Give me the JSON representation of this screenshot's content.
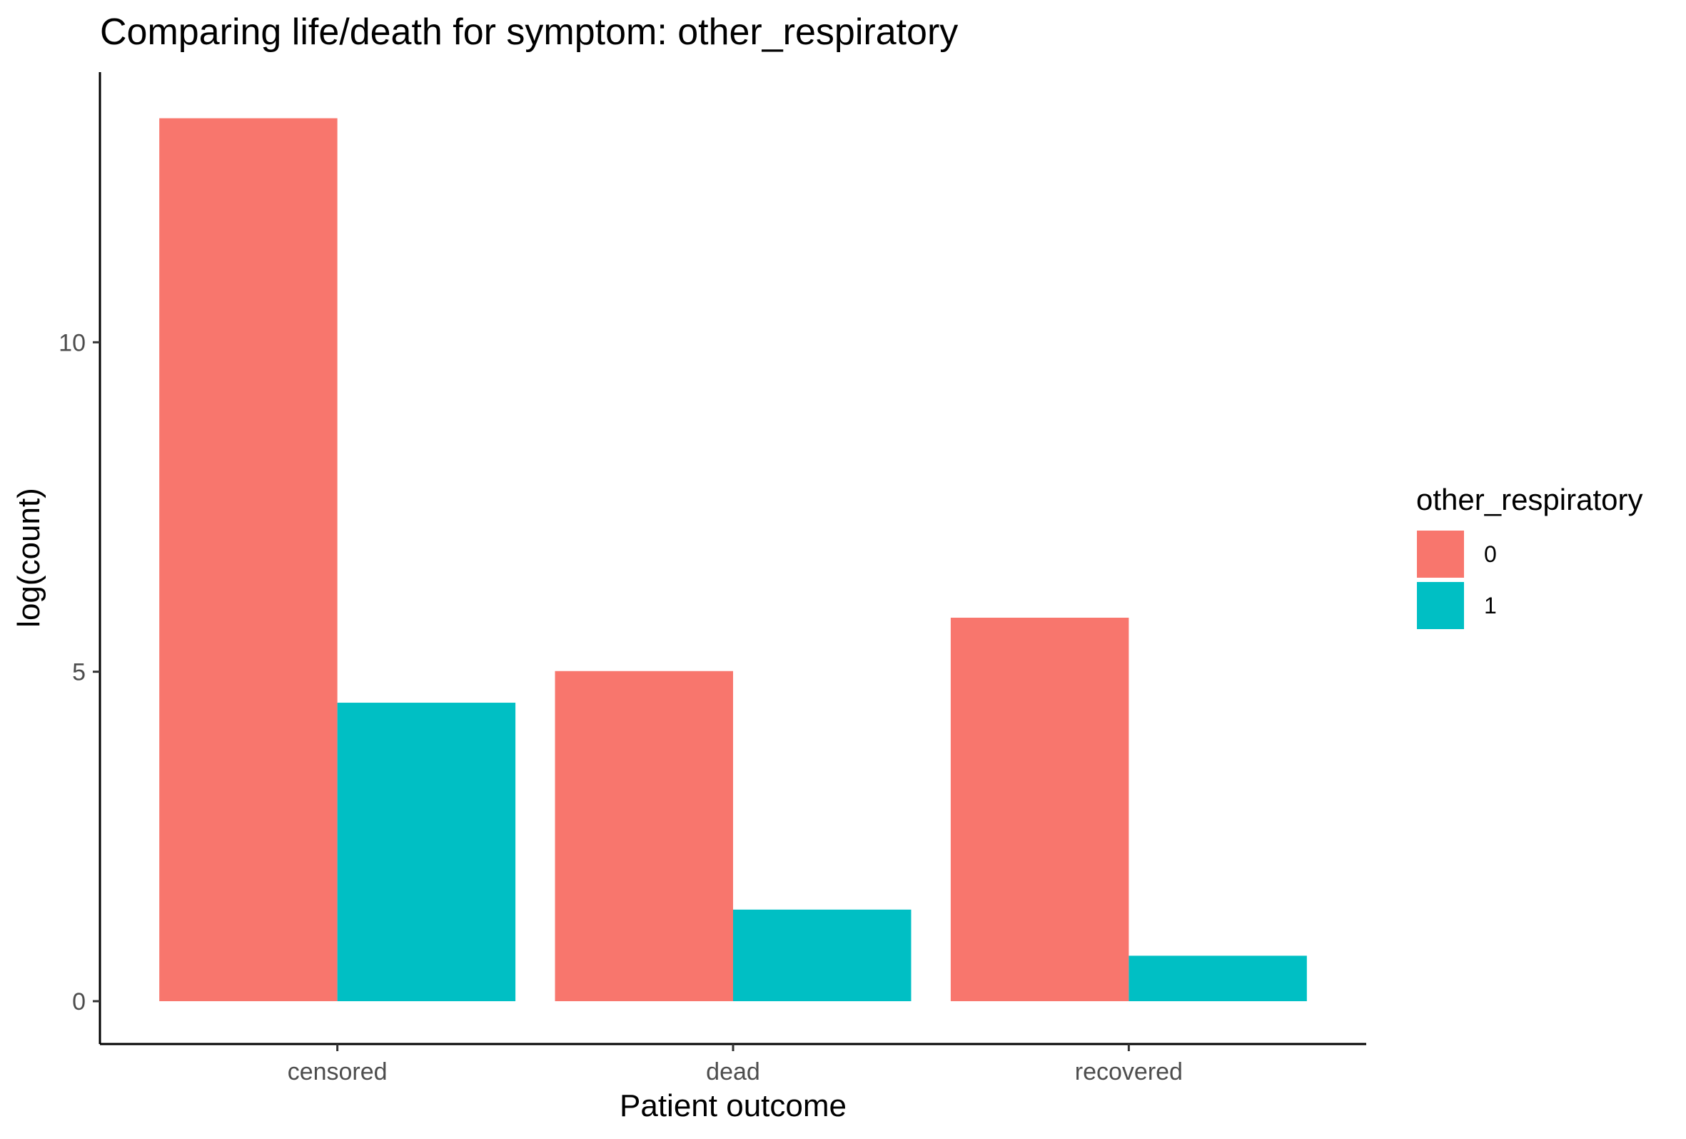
{
  "chart_data": {
    "type": "bar",
    "title": "Comparing life/death for symptom: other_respiratory",
    "xlabel": "Patient outcome",
    "ylabel": "log(count)",
    "categories": [
      "censored",
      "dead",
      "recovered"
    ],
    "series": [
      {
        "name": "0",
        "color": "#F8766D",
        "values": [
          13.4,
          5.01,
          5.82
        ]
      },
      {
        "name": "1",
        "color": "#00BFC4",
        "values": [
          4.53,
          1.39,
          0.69
        ]
      }
    ],
    "ylim": [
      -0.65,
      14.1
    ],
    "yticks": [
      0,
      5,
      10
    ],
    "ytick_labels": [
      "0",
      "5",
      "10"
    ],
    "grid": false,
    "legend": {
      "title": "other_respiratory",
      "position": "right"
    }
  }
}
